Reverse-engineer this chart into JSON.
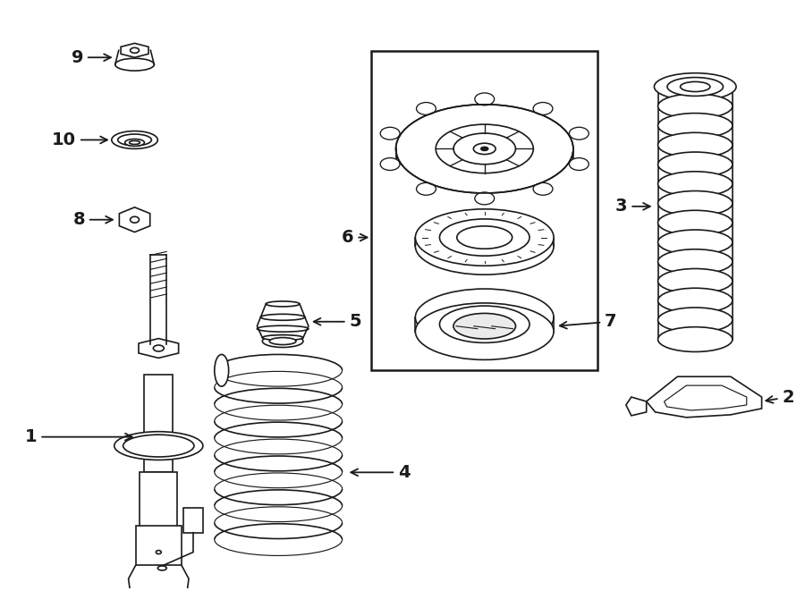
{
  "bg_color": "#ffffff",
  "line_color": "#1a1a1a",
  "line_width": 1.2,
  "fig_width": 9.0,
  "fig_height": 6.61,
  "label_fontsize": 13
}
